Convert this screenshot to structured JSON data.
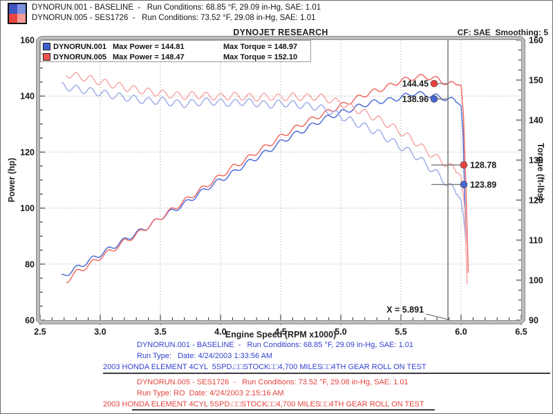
{
  "header": {
    "run1_line": "DYNORUN.001 - BASELINE  -   Run Conditions: 68.85 °F, 29.09 in-Hg, SAE: 1.01",
    "run2_line": "DYNORUN.005 - SES1726  -   Run Conditions: 73.52 °F, 29.08 in-Hg, SAE: 1.01",
    "title": "DYNOJET RESEARCH",
    "cf_smoothing": "CF: SAE  Smoothing: 5",
    "swatch_quadrants": [
      "#3f56c4",
      "#7e92e2",
      "#ea4440",
      "#f59b97"
    ]
  },
  "legend": {
    "rows": [
      {
        "name": "DYNORUN.001",
        "power": "Max Power = 144.81",
        "torque": "Max Torque = 148.97",
        "color": "#3f5fd0"
      },
      {
        "name": "DYNORUN.005",
        "power": "Max Power = 148.47",
        "torque": "Max Torque = 152.10",
        "color": "#ef5350"
      }
    ]
  },
  "colors": {
    "run1_text": "#2f3fcb",
    "run2_text": "#e4423c",
    "separator": "#3a3a3a",
    "cursor_line": "#555555",
    "grid": "#9a9a9a",
    "tick": "#333333",
    "frame_band": "#bdbdbd",
    "frame_edge": "#8a8a8a"
  },
  "chart_data": {
    "type": "line",
    "title": "DYNOJET RESEARCH",
    "xlabel": "Engine Speed (RPM x1000)",
    "ylabel_left": "Power (hp)",
    "ylabel_right": "Torque (ft-lbs)",
    "x_range": [
      2.5,
      6.5
    ],
    "power_range": [
      60,
      160
    ],
    "torque_range": [
      90,
      160
    ],
    "x_major_step": 0.5,
    "x_minor_step": 0.1,
    "power_major_step": 20,
    "power_minor_step": 5,
    "torque_major_step": 10,
    "torque_minor_step": 2.5,
    "grid": {
      "x": [
        3.0,
        3.5,
        4.0,
        4.5,
        5.0,
        5.5,
        6.0
      ],
      "power": [
        80,
        100,
        120,
        140
      ]
    },
    "legend_position": "top-left",
    "cursor": {
      "x": 5.891,
      "label": "X = 5.891",
      "readings": [
        {
          "series": "DYNORUN.005",
          "quantity": "power",
          "axis": "power",
          "value": 144.45,
          "label": "144.45",
          "color": "#e8433f",
          "side": "left"
        },
        {
          "series": "DYNORUN.001",
          "quantity": "power",
          "axis": "power",
          "value": 138.96,
          "label": "138.96",
          "color": "#4a66d0",
          "side": "left"
        },
        {
          "series": "DYNORUN.005",
          "quantity": "torque",
          "axis": "torque",
          "value": 128.78,
          "label": "128.78",
          "color": "#e8433f",
          "side": "right"
        },
        {
          "series": "DYNORUN.001",
          "quantity": "torque",
          "axis": "torque",
          "value": 123.89,
          "label": "123.89",
          "color": "#4a66d0",
          "side": "right"
        }
      ]
    },
    "series": [
      {
        "name": "DYNORUN.001 Power",
        "axis": "power",
        "color": "#4f6cd4",
        "max": 144.81,
        "ripple": {
          "amp": 0.9,
          "period": 0.13,
          "phase": -0.5,
          "until": 5.97
        },
        "points": [
          [
            2.68,
            75.5
          ],
          [
            2.8,
            78.5
          ],
          [
            2.9,
            81
          ],
          [
            3.0,
            83.5
          ],
          [
            3.1,
            86
          ],
          [
            3.2,
            88.5
          ],
          [
            3.3,
            91
          ],
          [
            3.4,
            93.5
          ],
          [
            3.5,
            96.5
          ],
          [
            3.6,
            99
          ],
          [
            3.7,
            101.5
          ],
          [
            3.8,
            104.5
          ],
          [
            3.9,
            107.5
          ],
          [
            4.0,
            110
          ],
          [
            4.1,
            112.5
          ],
          [
            4.2,
            115.5
          ],
          [
            4.3,
            118
          ],
          [
            4.4,
            120.5
          ],
          [
            4.5,
            123.5
          ],
          [
            4.6,
            126
          ],
          [
            4.7,
            128
          ],
          [
            4.8,
            130.5
          ],
          [
            4.9,
            132.5
          ],
          [
            5.0,
            134
          ],
          [
            5.1,
            135.5
          ],
          [
            5.2,
            137
          ],
          [
            5.3,
            138
          ],
          [
            5.4,
            138.5
          ],
          [
            5.5,
            139.5
          ],
          [
            5.6,
            141
          ],
          [
            5.7,
            140.5
          ],
          [
            5.8,
            139.8
          ],
          [
            5.891,
            138.96
          ],
          [
            5.95,
            138.3
          ],
          [
            6.0,
            136.5
          ],
          [
            6.015,
            128
          ],
          [
            6.03,
            105
          ],
          [
            6.04,
            88
          ]
        ]
      },
      {
        "name": "DYNORUN.005 Power",
        "axis": "power",
        "color": "#ef6a64",
        "max": 148.47,
        "ripple": {
          "amp": 0.9,
          "period": 0.13,
          "phase": -0.5,
          "until": 5.97
        },
        "points": [
          [
            2.72,
            74
          ],
          [
            2.8,
            77
          ],
          [
            2.9,
            79.5
          ],
          [
            3.0,
            82.5
          ],
          [
            3.1,
            85
          ],
          [
            3.2,
            88
          ],
          [
            3.3,
            90.5
          ],
          [
            3.4,
            93.5
          ],
          [
            3.5,
            96.5
          ],
          [
            3.6,
            99.5
          ],
          [
            3.7,
            102.5
          ],
          [
            3.8,
            105.5
          ],
          [
            3.9,
            108.5
          ],
          [
            4.0,
            111.5
          ],
          [
            4.1,
            114.5
          ],
          [
            4.2,
            117
          ],
          [
            4.3,
            120
          ],
          [
            4.4,
            122.5
          ],
          [
            4.5,
            125.5
          ],
          [
            4.6,
            128
          ],
          [
            4.7,
            130.5
          ],
          [
            4.8,
            132.5
          ],
          [
            4.9,
            134.5
          ],
          [
            5.0,
            136.5
          ],
          [
            5.1,
            138.5
          ],
          [
            5.2,
            140.5
          ],
          [
            5.3,
            142
          ],
          [
            5.4,
            143.5
          ],
          [
            5.5,
            145.5
          ],
          [
            5.6,
            146.5
          ],
          [
            5.7,
            147
          ],
          [
            5.8,
            146
          ],
          [
            5.891,
            144.45
          ],
          [
            5.95,
            144.2
          ],
          [
            6.0,
            143.8
          ],
          [
            6.02,
            133
          ],
          [
            6.04,
            108
          ],
          [
            6.06,
            77
          ]
        ]
      },
      {
        "name": "DYNORUN.001 Torque",
        "axis": "torque",
        "color": "#9fade8",
        "max": 148.97,
        "ripple": {
          "amp": 0.9,
          "period": 0.12,
          "phase": -1.62,
          "until": 5.97
        },
        "points": [
          [
            2.68,
            148.5
          ],
          [
            2.8,
            147.8
          ],
          [
            2.9,
            147.3
          ],
          [
            3.0,
            146.8
          ],
          [
            3.1,
            146.2
          ],
          [
            3.2,
            145.7
          ],
          [
            3.3,
            145.2
          ],
          [
            3.4,
            144.7
          ],
          [
            3.5,
            144.9
          ],
          [
            3.6,
            144.3
          ],
          [
            3.7,
            144.0
          ],
          [
            3.8,
            144.4
          ],
          [
            3.9,
            144.7
          ],
          [
            4.0,
            144.4
          ],
          [
            4.1,
            144.2
          ],
          [
            4.2,
            144.6
          ],
          [
            4.3,
            144.2
          ],
          [
            4.4,
            143.8
          ],
          [
            4.5,
            144.2
          ],
          [
            4.6,
            144.0
          ],
          [
            4.7,
            143.6
          ],
          [
            4.8,
            143.3
          ],
          [
            4.9,
            142.3
          ],
          [
            5.0,
            141.0
          ],
          [
            5.1,
            139.6
          ],
          [
            5.2,
            138.4
          ],
          [
            5.3,
            137.0
          ],
          [
            5.4,
            135.2
          ],
          [
            5.5,
            133.3
          ],
          [
            5.6,
            131.6
          ],
          [
            5.7,
            129.2
          ],
          [
            5.8,
            126.6
          ],
          [
            5.891,
            123.89
          ],
          [
            5.95,
            122.3
          ],
          [
            6.0,
            120.0
          ],
          [
            6.02,
            116.0
          ],
          [
            6.04,
            109.5
          ]
        ]
      },
      {
        "name": "DYNORUN.005 Torque",
        "axis": "torque",
        "color": "#f6a8a6",
        "max": 152.1,
        "ripple": {
          "amp": 0.9,
          "period": 0.12,
          "phase": -1.62,
          "until": 5.97
        },
        "points": [
          [
            2.72,
            151.5
          ],
          [
            2.8,
            151.0
          ],
          [
            2.9,
            150.4
          ],
          [
            3.0,
            149.6
          ],
          [
            3.1,
            148.9
          ],
          [
            3.2,
            148.2
          ],
          [
            3.3,
            147.6
          ],
          [
            3.4,
            147.1
          ],
          [
            3.5,
            146.7
          ],
          [
            3.6,
            146.3
          ],
          [
            3.7,
            146.0
          ],
          [
            3.8,
            146.3
          ],
          [
            3.9,
            146.0
          ],
          [
            4.0,
            145.8
          ],
          [
            4.1,
            146.1
          ],
          [
            4.2,
            145.8
          ],
          [
            4.3,
            145.6
          ],
          [
            4.4,
            145.9
          ],
          [
            4.5,
            145.6
          ],
          [
            4.6,
            145.9
          ],
          [
            4.7,
            145.6
          ],
          [
            4.8,
            145.9
          ],
          [
            4.9,
            145.2
          ],
          [
            5.0,
            144.2
          ],
          [
            5.1,
            143.0
          ],
          [
            5.2,
            141.8
          ],
          [
            5.3,
            140.4
          ],
          [
            5.4,
            138.8
          ],
          [
            5.5,
            137.0
          ],
          [
            5.6,
            135.0
          ],
          [
            5.7,
            132.6
          ],
          [
            5.8,
            130.5
          ],
          [
            5.891,
            128.78
          ],
          [
            5.95,
            127.5
          ],
          [
            6.0,
            126.0
          ],
          [
            6.03,
            118.0
          ],
          [
            6.05,
            99.0
          ]
        ]
      }
    ]
  },
  "footer": {
    "run1": {
      "lines": [
        "DYNORUN.001 - BASELINE  -   Run Conditions: 68.85 °F, 29.09 in-Hg, SAE: 1.01",
        "Run Type:   Date: 4/24/2003 1:33:56 AM",
        "2003 HONDA ELEMENT 4CYL  5SPD.□□STOCK□□4,700 MILES□□4TH GEAR ROLL ON TEST"
      ]
    },
    "run2": {
      "lines": [
        "DYNORUN.005 - SES1726  -   Run Conditions: 73.52 °F, 29.08 in-Hg, SAE: 1.01",
        "Run Type: RO  Date: 4/24/2003 2:15:16 AM",
        "2003 HONDA ELEMENT 4CYL 5SPD.□□STOCK□□4,700 MILES□□4TH GEAR ROLL ON TEST"
      ]
    }
  }
}
